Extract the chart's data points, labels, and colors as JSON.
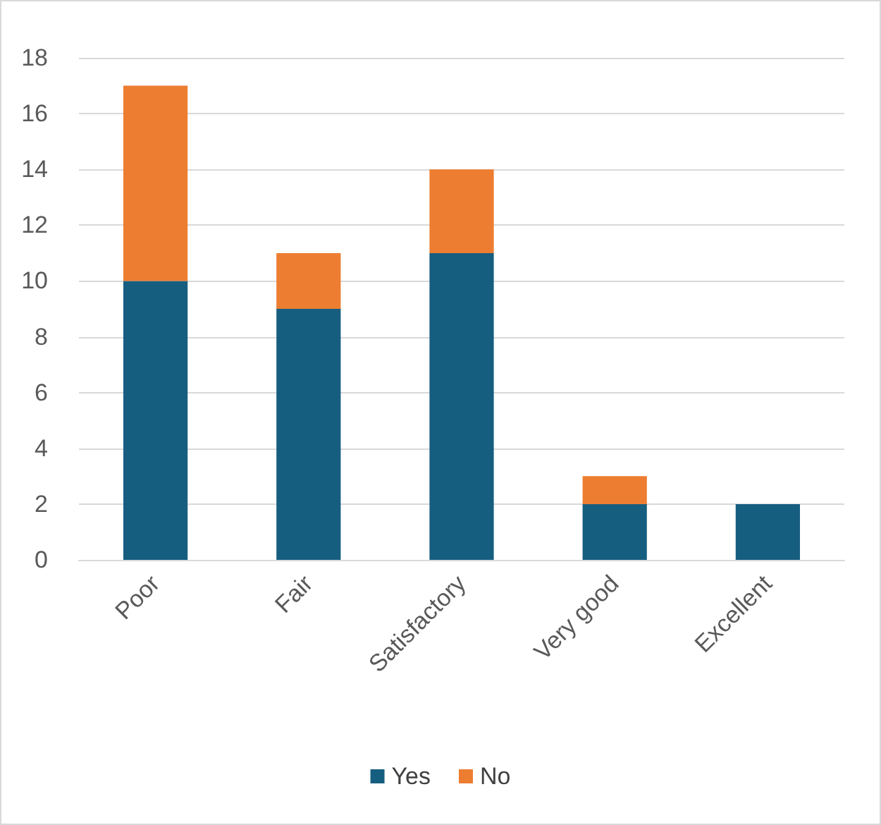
{
  "chart_data": {
    "type": "bar",
    "categories": [
      "Poor",
      "Fair",
      "Satisfactory",
      "Very good",
      "Excellent"
    ],
    "series": [
      {
        "name": "Yes",
        "color": "#165e80",
        "values": [
          10,
          9,
          11,
          2,
          2
        ]
      },
      {
        "name": "No",
        "color": "#ed7d31",
        "values": [
          7,
          2,
          3,
          1,
          0
        ]
      }
    ],
    "stacked": true,
    "ylim": [
      0,
      18
    ],
    "yticks": [
      0,
      2,
      4,
      6,
      8,
      10,
      12,
      14,
      16,
      18
    ],
    "grid": "y",
    "legend": "bottom"
  }
}
